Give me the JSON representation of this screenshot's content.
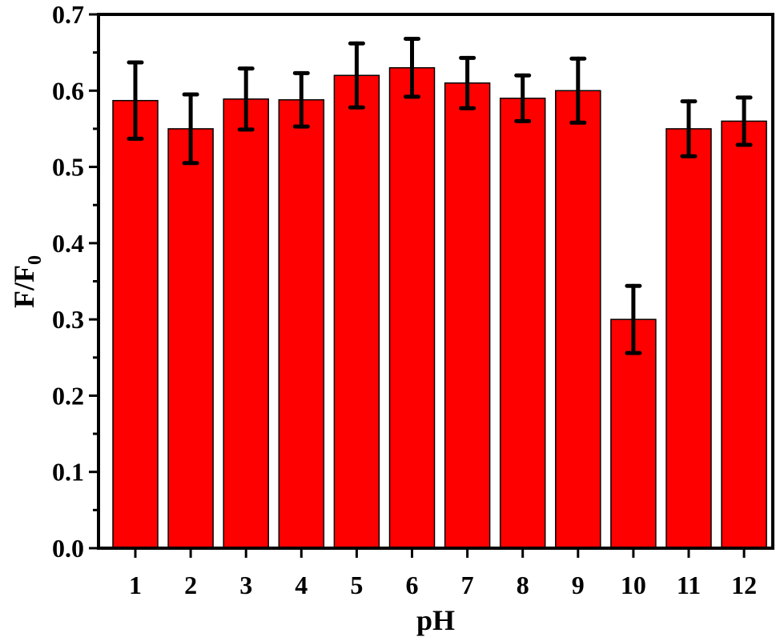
{
  "chart_data": {
    "type": "bar",
    "categories": [
      "1",
      "2",
      "3",
      "4",
      "5",
      "6",
      "7",
      "8",
      "9",
      "10",
      "11",
      "12"
    ],
    "values": [
      0.587,
      0.55,
      0.589,
      0.588,
      0.62,
      0.63,
      0.61,
      0.59,
      0.6,
      0.3,
      0.55,
      0.56
    ],
    "errors": [
      0.05,
      0.045,
      0.04,
      0.035,
      0.042,
      0.038,
      0.033,
      0.03,
      0.042,
      0.044,
      0.036,
      0.031
    ],
    "xlabel": "pH",
    "ylabel_main": "F/F",
    "ylabel_sub": "0",
    "ylim": [
      0,
      0.7
    ],
    "yticks": [
      "0.0",
      "0.1",
      "0.2",
      "0.3",
      "0.4",
      "0.5",
      "0.6",
      "0.7"
    ],
    "grid": false,
    "colors": {
      "bar": "#ff0000",
      "outline": "#000000",
      "error_bar": "#000000"
    }
  }
}
